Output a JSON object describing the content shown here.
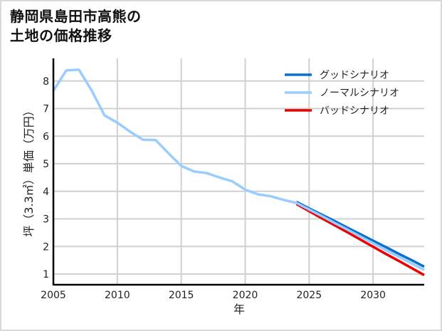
{
  "title_lines": [
    "静岡県島田市高熊の",
    "土地の価格推移"
  ],
  "chart_data": {
    "type": "line",
    "title": "静岡県島田市高熊の土地の価格推移",
    "xlabel": "年",
    "ylabel": "坪（3.3㎡）単価（万円）",
    "xlim": [
      2005,
      2034
    ],
    "ylim": [
      0.6,
      8.8
    ],
    "xticks": [
      2005,
      2010,
      2015,
      2020,
      2025,
      2030
    ],
    "yticks": [
      1,
      2,
      3,
      4,
      5,
      6,
      7,
      8
    ],
    "grid": true,
    "legend_position": "upper right",
    "series": [
      {
        "name": "グッドシナリオ",
        "color": "#0a6fcf",
        "x": [
          2024,
          2025,
          2026,
          2027,
          2028,
          2029,
          2030,
          2031,
          2032,
          2033,
          2034
        ],
        "values": [
          3.58,
          3.34,
          3.11,
          2.88,
          2.64,
          2.41,
          2.17,
          1.94,
          1.7,
          1.47,
          1.23
        ]
      },
      {
        "name": "ノーマルシナリオ",
        "color": "#99ccff",
        "x": [
          2005,
          2006,
          2007,
          2008,
          2009,
          2010,
          2011,
          2012,
          2013,
          2014,
          2015,
          2016,
          2017,
          2018,
          2019,
          2020,
          2021,
          2022,
          2023,
          2024,
          2025,
          2026,
          2027,
          2028,
          2029,
          2030,
          2031,
          2032,
          2033,
          2034
        ],
        "values": [
          7.64,
          8.38,
          8.41,
          7.65,
          6.75,
          6.49,
          6.16,
          5.87,
          5.86,
          5.38,
          4.92,
          4.72,
          4.66,
          4.5,
          4.36,
          4.06,
          3.89,
          3.82,
          3.69,
          3.58,
          3.34,
          3.1,
          2.85,
          2.61,
          2.36,
          2.12,
          1.87,
          1.63,
          1.39,
          1.15
        ]
      },
      {
        "name": "バッドシナリオ",
        "color": "#ee0000",
        "x": [
          2024,
          2025,
          2026,
          2027,
          2028,
          2029,
          2030,
          2031,
          2032,
          2033,
          2034
        ],
        "values": [
          3.58,
          3.32,
          3.06,
          2.81,
          2.55,
          2.29,
          2.03,
          1.77,
          1.52,
          1.26,
          1.0
        ]
      }
    ]
  }
}
